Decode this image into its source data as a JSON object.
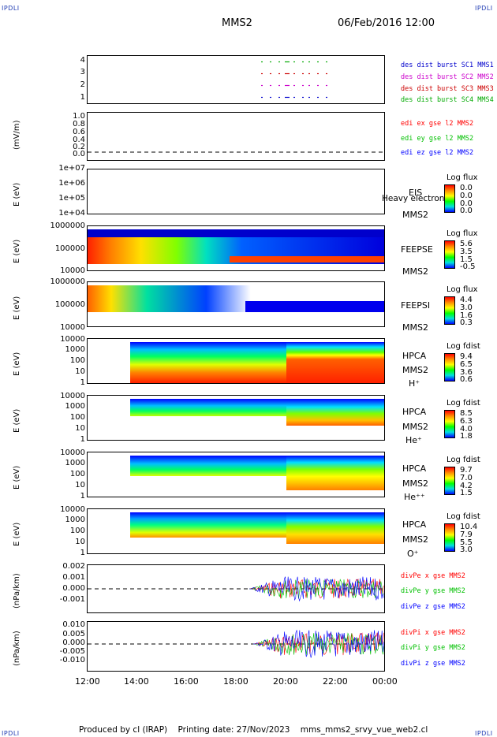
{
  "corner_label": "IPDLI",
  "header": {
    "spacecraft": "MMS2",
    "datetime": "06/Feb/2016 12:00"
  },
  "footer": {
    "produced_by": "Produced by cl (IRAP)",
    "printing_date": "Printing date: 27/Nov/2023",
    "filename": "mms_mms2_srvy_vue_web2.cl"
  },
  "colors": {
    "mms1": "#0000cc",
    "mms2": "#cc00cc",
    "mms3": "#cc0000",
    "mms4": "#00aa00",
    "red": "#ff0000",
    "green": "#00c000",
    "blue": "#0000ff"
  },
  "chart_data": [
    {
      "type": "scatter",
      "id": "burst",
      "ylim": [
        0.5,
        4.5
      ],
      "yticks": [
        "4",
        "3",
        "2",
        "1"
      ],
      "series": [
        {
          "name": "des dist burst SC1 MMS1",
          "y": 1
        },
        {
          "name": "des dist burst SC2 MMS2",
          "y": 2
        },
        {
          "name": "des dist burst SC3 MMS3",
          "y": 3
        },
        {
          "name": "des dist burst SC4 MMS4",
          "y": 4
        }
      ]
    },
    {
      "type": "line",
      "id": "edi",
      "ylabel": "(mV/m)",
      "ylim": [
        -0.1,
        1.05
      ],
      "yticks": [
        "1.0",
        "0.8",
        "0.6",
        "0.4",
        "0.2",
        "0.0"
      ],
      "series": [
        {
          "name": "edi ex gse l2 MMS2"
        },
        {
          "name": "edi ey gse l2 MMS2"
        },
        {
          "name": "edi ez gse l2 MMS2"
        }
      ]
    },
    {
      "type": "heatmap",
      "id": "eis",
      "ylabel": "E (eV)",
      "yticks": [
        "1e+07",
        "1e+06",
        "1e+05",
        "1e+04"
      ],
      "instrument": "EIS",
      "sub": "MMS2",
      "overlay_text": "Heavy electron to",
      "colorbar_title": "Log flux",
      "colorbar_ticks": [
        "0.0",
        "0.0",
        "0.0",
        "0.0"
      ]
    },
    {
      "type": "heatmap",
      "id": "feepse",
      "ylabel": "E (eV)",
      "yticks": [
        "1000000",
        "100000",
        "10000"
      ],
      "instrument": "FEEPSE",
      "sub": "MMS2",
      "colorbar_title": "Log flux",
      "colorbar_ticks": [
        "5.6",
        "3.5",
        "1.5",
        "-0.5"
      ]
    },
    {
      "type": "heatmap",
      "id": "feepsi",
      "ylabel": "E (eV)",
      "yticks": [
        "1000000",
        "100000",
        "10000"
      ],
      "instrument": "FEEPSI",
      "sub": "MMS2",
      "colorbar_title": "Log flux",
      "colorbar_ticks": [
        "4.4",
        "3.0",
        "1.6",
        "0.3"
      ]
    },
    {
      "type": "heatmap",
      "id": "hpca_h",
      "ylabel": "E (eV)",
      "yticks": [
        "10000",
        "1000",
        "100",
        "10",
        "1"
      ],
      "instrument": "HPCA",
      "sub": "MMS2",
      "species": "H⁺",
      "colorbar_title": "Log fdist",
      "colorbar_ticks": [
        "9.4",
        "6.5",
        "3.6",
        "0.6"
      ]
    },
    {
      "type": "heatmap",
      "id": "hpca_he",
      "ylabel": "E (eV)",
      "yticks": [
        "10000",
        "1000",
        "100",
        "10",
        "1"
      ],
      "instrument": "HPCA",
      "sub": "MMS2",
      "species": "He⁺",
      "colorbar_title": "Log fdist",
      "colorbar_ticks": [
        "8.5",
        "6.3",
        "4.0",
        "1.8"
      ]
    },
    {
      "type": "heatmap",
      "id": "hpca_hepp",
      "ylabel": "E (eV)",
      "yticks": [
        "10000",
        "1000",
        "100",
        "10",
        "1"
      ],
      "instrument": "HPCA",
      "sub": "MMS2",
      "species": "He⁺⁺",
      "colorbar_title": "Log fdist",
      "colorbar_ticks": [
        "9.7",
        "7.0",
        "4.2",
        "1.5"
      ]
    },
    {
      "type": "heatmap",
      "id": "hpca_o",
      "ylabel": "E (eV)",
      "yticks": [
        "10000",
        "1000",
        "100",
        "10",
        "1"
      ],
      "instrument": "HPCA",
      "sub": "MMS2",
      "species": "O⁺",
      "colorbar_title": "Log fdist",
      "colorbar_ticks": [
        "10.4",
        "7.9",
        "5.5",
        "3.0"
      ]
    },
    {
      "type": "line",
      "id": "divpe",
      "ylabel": "(nPa/km)",
      "ylim": [
        -0.002,
        0.0022
      ],
      "yticks": [
        "0.002",
        "0.001",
        "0.000",
        "-0.001"
      ],
      "series": [
        {
          "name": "divPe x gse MMS2"
        },
        {
          "name": "divPe y gse MMS2"
        },
        {
          "name": "divPe z gse MMS2"
        }
      ]
    },
    {
      "type": "line",
      "id": "divpi",
      "ylabel": "(nPa/km)",
      "ylim": [
        -0.014,
        0.012
      ],
      "yticks": [
        "0.010",
        "0.005",
        "0.000",
        "-0.005",
        "-0.010"
      ],
      "series": [
        {
          "name": "divPi x gse MMS2"
        },
        {
          "name": "divPi y gse MMS2"
        },
        {
          "name": "divPi z gse MMS2"
        }
      ]
    }
  ],
  "x_axis": {
    "ticks": [
      "12:00",
      "14:00",
      "16:00",
      "18:00",
      "20:00",
      "22:00",
      "00:00"
    ]
  }
}
